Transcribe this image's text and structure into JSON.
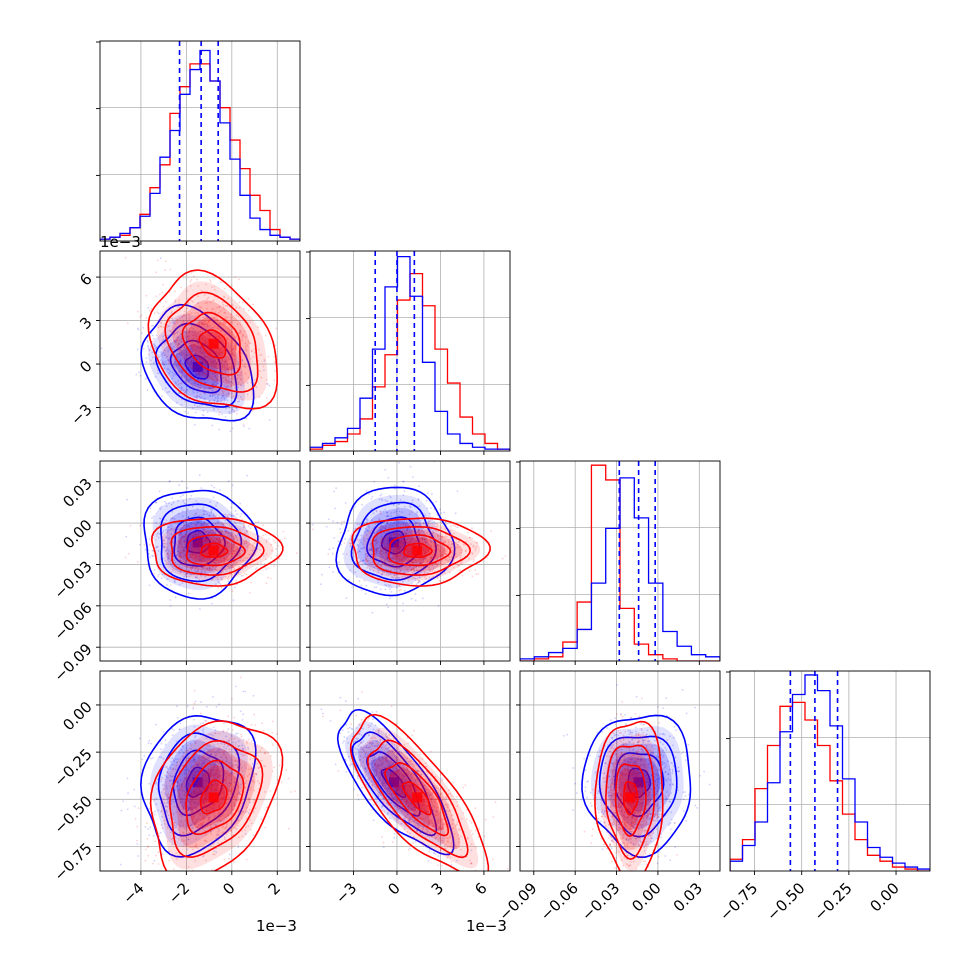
{
  "colors": {
    "blue": "#0000ff",
    "red": "#ff0000",
    "grid": "#b0b0b0",
    "frame": "#000000"
  },
  "chart_data": {
    "type": "corner",
    "grid": true,
    "series": [
      {
        "color": "#0000ff"
      },
      {
        "color": "#ff0000"
      }
    ],
    "parameters": [
      {
        "range": [
          -5.8,
          3.0
        ],
        "ticks": [
          -4,
          -2,
          0,
          2
        ],
        "tick_labels": [
          "−4",
          "−2",
          "0",
          "2"
        ],
        "offset_label": "1e−3",
        "quantiles_blue": [
          -2.3,
          -1.35,
          -0.6
        ],
        "center": [
          -1.5,
          -0.8
        ],
        "sd": [
          1.0,
          1.15
        ]
      },
      {
        "range": [
          -6.0,
          7.8
        ],
        "ticks": [
          -3,
          0,
          3,
          6
        ],
        "tick_labels": [
          "−3",
          "0",
          "3",
          "6"
        ],
        "offset_label": "1e−3",
        "quantiles_blue": [
          -1.5,
          0.0,
          1.2
        ],
        "center": [
          -0.2,
          1.4
        ],
        "sd": [
          1.6,
          1.9
        ]
      },
      {
        "range": [
          -0.1,
          0.045
        ],
        "ticks": [
          -0.09,
          -0.06,
          -0.03,
          0.0,
          0.03
        ],
        "tick_labels": [
          "−0.09",
          "−0.06",
          "−0.03",
          "0.00",
          "0.03"
        ],
        "offset_label": "",
        "quantiles_blue": [
          -0.028,
          -0.014,
          -0.002
        ],
        "center": [
          -0.014,
          -0.02
        ],
        "sd": [
          0.016,
          0.01
        ]
      },
      {
        "range": [
          -0.88,
          0.18
        ],
        "ticks": [
          -0.75,
          -0.5,
          -0.25,
          0.0
        ],
        "tick_labels": [
          "−0.75",
          "−0.50",
          "−0.25",
          "0.00"
        ],
        "offset_label": "",
        "quantiles_blue": [
          -0.56,
          -0.43,
          -0.31
        ],
        "center": [
          -0.41,
          -0.49
        ],
        "sd": [
          0.15,
          0.17
        ]
      }
    ],
    "hist_blue_0": [
      0.01,
      0.02,
      0.04,
      0.07,
      0.13,
      0.25,
      0.44,
      0.58,
      0.77,
      0.9,
      1.0,
      0.84,
      0.62,
      0.43,
      0.24,
      0.12,
      0.06,
      0.03,
      0.02,
      0.01
    ],
    "hist_red_0": [
      0.01,
      0.02,
      0.03,
      0.07,
      0.14,
      0.28,
      0.4,
      0.67,
      0.81,
      0.93,
      0.93,
      0.84,
      0.7,
      0.53,
      0.38,
      0.24,
      0.16,
      0.06,
      0.02,
      0.01
    ],
    "hist_blue_1": [
      0.02,
      0.04,
      0.07,
      0.12,
      0.28,
      0.54,
      0.87,
      1.03,
      0.82,
      0.47,
      0.21,
      0.09,
      0.04,
      0.02,
      0.01,
      0.01
    ],
    "hist_red_1": [
      0.01,
      0.03,
      0.05,
      0.09,
      0.17,
      0.34,
      0.51,
      0.8,
      0.94,
      0.77,
      0.54,
      0.36,
      0.18,
      0.09,
      0.04,
      0.01
    ],
    "hist_blue_2": [
      0.01,
      0.02,
      0.04,
      0.06,
      0.15,
      0.37,
      0.63,
      0.87,
      0.68,
      0.37,
      0.14,
      0.07,
      0.03,
      0.02
    ],
    "hist_red_2": [
      0.0,
      0.01,
      0.02,
      0.09,
      0.28,
      0.93,
      0.86,
      0.25,
      0.08,
      0.03,
      0.01,
      0.0,
      0.0,
      0.0
    ],
    "hist_blue_3": [
      0.05,
      0.13,
      0.25,
      0.45,
      0.71,
      0.9,
      1.0,
      0.92,
      0.74,
      0.47,
      0.25,
      0.12,
      0.07,
      0.04,
      0.02,
      0.01
    ],
    "hist_red_3": [
      0.06,
      0.16,
      0.42,
      0.64,
      0.84,
      0.86,
      0.77,
      0.64,
      0.46,
      0.29,
      0.16,
      0.08,
      0.05,
      0.02,
      0.01,
      0.0
    ],
    "correlations": {
      "1-0": {
        "blue": -0.3,
        "red": -0.3
      },
      "2-0": {
        "blue": 0.0,
        "red": 0.0
      },
      "2-1": {
        "blue": 0.05,
        "red": 0.0
      },
      "3-0": {
        "blue": 0.2,
        "red": 0.3
      },
      "3-1": {
        "blue": -0.75,
        "red": -0.75
      },
      "3-2": {
        "blue": 0.0,
        "red": 0.0
      }
    }
  }
}
